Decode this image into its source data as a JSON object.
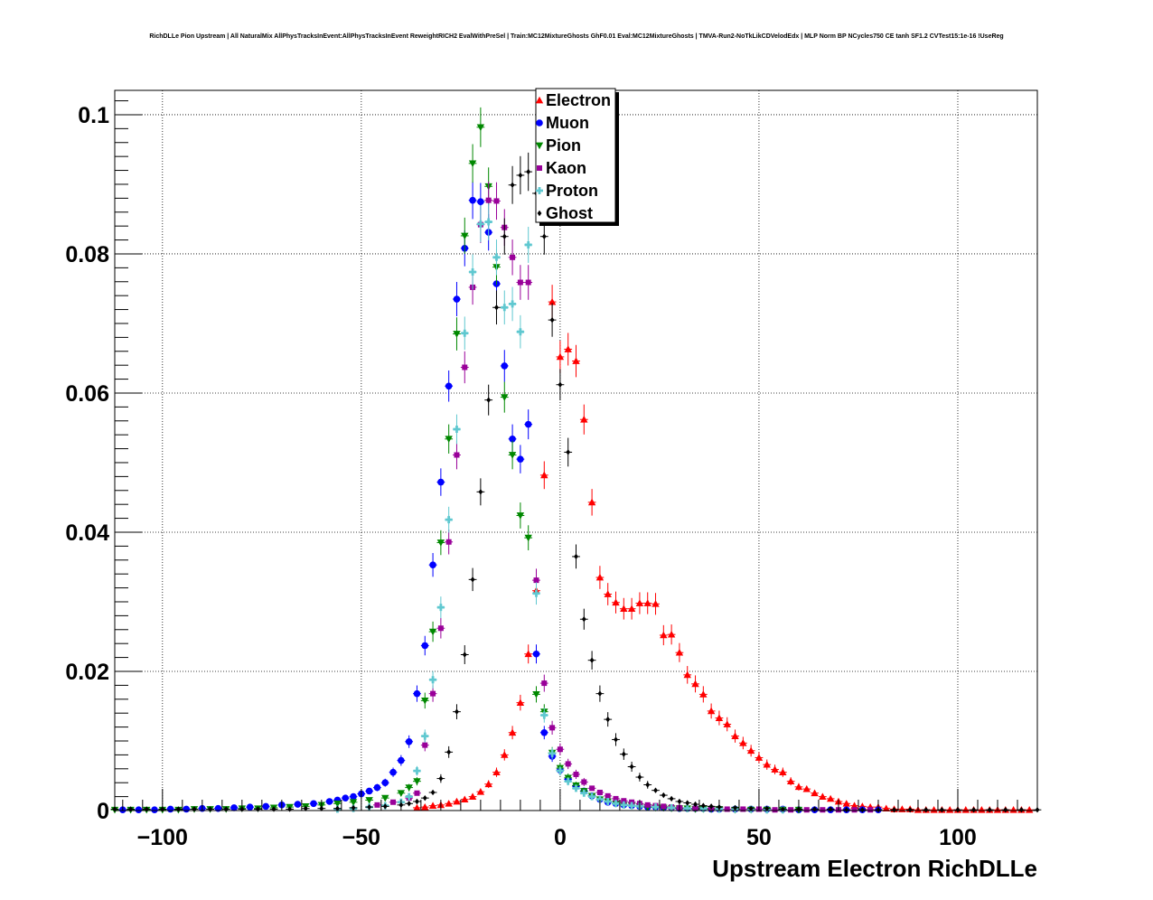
{
  "chart_data": {
    "type": "scatter",
    "title": "RichDLLe Pion Upstream | All NaturalMix AllPhysTracksInEvent:AllPhysTracksInEvent ReweightRICH2 EvalWithPreSel | Train:MC12MixtureGhosts GhF0.01 Eval:MC12MixtureGhosts | TMVA-Run2-NoTkLikCDVelodEdx | MLP Norm BP NCycles750 CE tanh SF1.2 CVTest15:1e-16 !UseReg",
    "xlabel": "Upstream Electron RichDLLe",
    "ylabel": "",
    "xlim": [
      -112,
      120
    ],
    "ylim": [
      0,
      0.1035
    ],
    "xticks": [
      -100,
      -50,
      0,
      50,
      100
    ],
    "xtick_labels": [
      "−100",
      "−50",
      "0",
      "50",
      "100"
    ],
    "yticks": [
      0,
      0.02,
      0.04,
      0.06,
      0.08,
      0.1
    ],
    "ytick_labels": [
      "0",
      "0.02",
      "0.04",
      "0.06",
      "0.08",
      "0.1"
    ],
    "grid": true,
    "legend_position": "top-center",
    "series": [
      {
        "name": "Electron",
        "color": "#ff0000",
        "marker": "triangle-up",
        "x": [
          -36,
          -34,
          -32,
          -30,
          -28,
          -26,
          -24,
          -22,
          -20,
          -18,
          -16,
          -14,
          -12,
          -10,
          -8,
          -6,
          -4,
          -2,
          0,
          2,
          4,
          6,
          8,
          10,
          12,
          14,
          16,
          18,
          20,
          22,
          24,
          26,
          28,
          30,
          32,
          34,
          36,
          38,
          40,
          42,
          44,
          46,
          48,
          50,
          52,
          54,
          56,
          58,
          60,
          62,
          64,
          66,
          68,
          70,
          72,
          74,
          76,
          78,
          80,
          82,
          84,
          86,
          88,
          90,
          92,
          94,
          96,
          98,
          100,
          102,
          104,
          106,
          108,
          110,
          112,
          114,
          116,
          118
        ],
        "y": [
          0.0004,
          0.0005,
          0.0007,
          0.0008,
          0.001,
          0.0013,
          0.0016,
          0.002,
          0.0027,
          0.0038,
          0.0055,
          0.008,
          0.0112,
          0.0155,
          0.0225,
          0.0316,
          0.0482,
          0.0731,
          0.0652,
          0.0663,
          0.0646,
          0.0562,
          0.0443,
          0.0335,
          0.0311,
          0.0299,
          0.029,
          0.029,
          0.0298,
          0.0298,
          0.0297,
          0.0252,
          0.0253,
          0.0227,
          0.0195,
          0.0182,
          0.0167,
          0.0143,
          0.0133,
          0.0124,
          0.0107,
          0.0097,
          0.0086,
          0.0076,
          0.0066,
          0.0059,
          0.0055,
          0.0042,
          0.0034,
          0.0031,
          0.0025,
          0.002,
          0.0017,
          0.0013,
          0.001,
          0.0007,
          0.0006,
          0.0005,
          0.0005,
          0.0003,
          0.0002,
          0.0002,
          0.0002,
          0.0001,
          0.0001,
          0.0001,
          0.0001,
          0.0001,
          0.0001,
          0.0001,
          0.0001,
          0.0001,
          0.0001,
          0.0001,
          0.0001,
          0.0001,
          0.0001,
          0.0001
        ]
      },
      {
        "name": "Muon",
        "color": "#0000ff",
        "marker": "circle",
        "x": [
          -110,
          -106,
          -102,
          -98,
          -94,
          -90,
          -86,
          -82,
          -78,
          -74,
          -70,
          -66,
          -62,
          -58,
          -56,
          -54,
          -52,
          -50,
          -48,
          -46,
          -44,
          -42,
          -40,
          -38,
          -36,
          -34,
          -32,
          -30,
          -28,
          -26,
          -24,
          -22,
          -20,
          -18,
          -16,
          -14,
          -12,
          -10,
          -8,
          -6,
          -4,
          -2,
          0,
          2,
          4,
          6,
          8,
          10,
          12,
          14,
          16,
          18,
          20,
          22,
          24,
          26,
          28,
          30,
          32,
          34,
          36,
          38,
          40,
          44,
          48,
          52,
          56,
          60,
          64,
          68,
          72,
          76,
          80
        ],
        "y": [
          0.0001,
          0.0001,
          0.0001,
          0.0002,
          0.0002,
          0.0003,
          0.0003,
          0.0004,
          0.0005,
          0.0006,
          0.0008,
          0.0009,
          0.001,
          0.0013,
          0.0015,
          0.0018,
          0.002,
          0.0024,
          0.0028,
          0.0033,
          0.004,
          0.0055,
          0.0072,
          0.0099,
          0.0168,
          0.0237,
          0.0353,
          0.0472,
          0.061,
          0.0735,
          0.0808,
          0.0877,
          0.0875,
          0.0831,
          0.0757,
          0.0639,
          0.0534,
          0.0505,
          0.0555,
          0.0225,
          0.0112,
          0.0078,
          0.0058,
          0.0045,
          0.0035,
          0.0028,
          0.0021,
          0.0016,
          0.0012,
          0.001,
          0.0008,
          0.0007,
          0.0006,
          0.0005,
          0.0005,
          0.0004,
          0.0004,
          0.0003,
          0.0003,
          0.0003,
          0.0003,
          0.0002,
          0.0002,
          0.0002,
          0.0002,
          0.0002,
          0.0002,
          0.0001,
          0.0001,
          0.0001,
          0.0001,
          0.0001,
          0.0001
        ]
      },
      {
        "name": "Pion",
        "color": "#008800",
        "marker": "triangle-down",
        "x": [
          -112,
          -108,
          -104,
          -100,
          -96,
          -92,
          -88,
          -84,
          -80,
          -76,
          -72,
          -68,
          -64,
          -60,
          -56,
          -52,
          -48,
          -44,
          -40,
          -38,
          -36,
          -34,
          -32,
          -30,
          -28,
          -26,
          -24,
          -22,
          -20,
          -18,
          -16,
          -14,
          -12,
          -10,
          -8,
          -6,
          -4,
          -2,
          0,
          2,
          4,
          6,
          8,
          10,
          12,
          14,
          16,
          18,
          20,
          22,
          24,
          26,
          28,
          30,
          32,
          34,
          36,
          38,
          40,
          44,
          48,
          52,
          56,
          60
        ],
        "y": [
          0.0001,
          0.0001,
          0.0001,
          0.0001,
          0.0001,
          0.0002,
          0.0002,
          0.0002,
          0.0003,
          0.0003,
          0.0004,
          0.0005,
          0.0006,
          0.0008,
          0.001,
          0.0012,
          0.0015,
          0.0018,
          0.0025,
          0.0033,
          0.0042,
          0.0158,
          0.0257,
          0.0385,
          0.0534,
          0.0685,
          0.0826,
          0.093,
          0.0982,
          0.0897,
          0.0781,
          0.0594,
          0.0511,
          0.0424,
          0.0392,
          0.0167,
          0.0142,
          0.0083,
          0.0061,
          0.0047,
          0.0036,
          0.0028,
          0.0021,
          0.0016,
          0.0013,
          0.001,
          0.0008,
          0.0007,
          0.0006,
          0.0005,
          0.0004,
          0.0004,
          0.0003,
          0.0003,
          0.0003,
          0.0002,
          0.0002,
          0.0002,
          0.0002,
          0.0001,
          0.0001,
          0.0001,
          0.0001,
          0.0001
        ]
      },
      {
        "name": "Kaon",
        "color": "#990099",
        "marker": "square",
        "x": [
          -46,
          -42,
          -38,
          -36,
          -34,
          -32,
          -30,
          -28,
          -26,
          -24,
          -22,
          -20,
          -18,
          -16,
          -14,
          -12,
          -10,
          -8,
          -6,
          -4,
          -2,
          0,
          2,
          4,
          6,
          8,
          10,
          12,
          14,
          16,
          18,
          20,
          22,
          24,
          26,
          28,
          30,
          34,
          38,
          42,
          46,
          50,
          54,
          58,
          62,
          66,
          70,
          74,
          78
        ],
        "y": [
          0.0008,
          0.0012,
          0.0018,
          0.0025,
          0.0094,
          0.0168,
          0.0262,
          0.0386,
          0.0511,
          0.0637,
          0.0752,
          0.0842,
          0.0877,
          0.0876,
          0.0838,
          0.0795,
          0.0759,
          0.0759,
          0.0331,
          0.0183,
          0.0119,
          0.0088,
          0.0067,
          0.0052,
          0.0041,
          0.0032,
          0.0026,
          0.0021,
          0.0017,
          0.0014,
          0.0012,
          0.001,
          0.0008,
          0.0007,
          0.0006,
          0.0005,
          0.0004,
          0.0003,
          0.0003,
          0.0002,
          0.0002,
          0.0002,
          0.0001,
          0.0001,
          0.0001,
          0.0001,
          0.0001,
          0.0001,
          0.0001
        ]
      },
      {
        "name": "Proton",
        "color": "#5fc8d0",
        "marker": "cross",
        "x": [
          -56,
          -52,
          -48,
          -44,
          -40,
          -38,
          -36,
          -34,
          -32,
          -30,
          -28,
          -26,
          -24,
          -22,
          -20,
          -18,
          -16,
          -14,
          -12,
          -10,
          -8,
          -6,
          -4,
          -2,
          0,
          2,
          4,
          6,
          8,
          10,
          12,
          14,
          16,
          18,
          20,
          24,
          28,
          32,
          36,
          40,
          44,
          48,
          52,
          56
        ],
        "y": [
          0.0002,
          0.0003,
          0.0005,
          0.0007,
          0.0012,
          0.002,
          0.0057,
          0.0107,
          0.0188,
          0.0292,
          0.0418,
          0.0548,
          0.0686,
          0.0774,
          0.0843,
          0.0846,
          0.0795,
          0.0723,
          0.0728,
          0.0688,
          0.0813,
          0.0312,
          0.0137,
          0.0082,
          0.0057,
          0.0042,
          0.0032,
          0.0025,
          0.002,
          0.0016,
          0.0013,
          0.001,
          0.0008,
          0.0007,
          0.0006,
          0.0005,
          0.0004,
          0.0003,
          0.0003,
          0.0002,
          0.0002,
          0.0002,
          0.0001,
          0.0001
        ]
      },
      {
        "name": "Ghost",
        "color": "#000000",
        "marker": "diamond",
        "x": [
          -112,
          -108,
          -104,
          -100,
          -96,
          -92,
          -88,
          -84,
          -80,
          -76,
          -72,
          -68,
          -64,
          -60,
          -56,
          -52,
          -48,
          -44,
          -40,
          -38,
          -36,
          -34,
          -32,
          -30,
          -28,
          -26,
          -24,
          -22,
          -20,
          -18,
          -16,
          -14,
          -12,
          -10,
          -8,
          -6,
          -4,
          -2,
          0,
          2,
          4,
          6,
          8,
          10,
          12,
          14,
          16,
          18,
          20,
          22,
          24,
          26,
          28,
          30,
          32,
          34,
          36,
          38,
          40,
          44,
          48,
          52,
          56,
          60,
          64,
          68,
          72,
          76,
          80,
          84,
          88,
          92,
          96,
          100,
          104,
          108,
          112,
          116,
          120
        ],
        "y": [
          0.0002,
          0.0002,
          0.0002,
          0.0002,
          0.0002,
          0.0002,
          0.0002,
          0.0002,
          0.0002,
          0.0002,
          0.0002,
          0.0002,
          0.0003,
          0.0003,
          0.0003,
          0.0004,
          0.0005,
          0.0006,
          0.0008,
          0.001,
          0.0013,
          0.0018,
          0.0026,
          0.0046,
          0.0084,
          0.0142,
          0.0224,
          0.0332,
          0.0458,
          0.059,
          0.0723,
          0.0825,
          0.0899,
          0.0913,
          0.0918,
          0.0887,
          0.0825,
          0.0705,
          0.0612,
          0.0515,
          0.0365,
          0.0275,
          0.0216,
          0.0168,
          0.0131,
          0.0102,
          0.0081,
          0.0063,
          0.0048,
          0.0037,
          0.0029,
          0.0022,
          0.0017,
          0.0013,
          0.0011,
          0.0009,
          0.0007,
          0.0006,
          0.0005,
          0.0004,
          0.0003,
          0.0003,
          0.0002,
          0.0002,
          0.0002,
          0.0002,
          0.0001,
          0.0001,
          0.0001,
          0.0001,
          0.0001,
          0.0001,
          0.0001,
          0.0001,
          0.0001,
          0.0001,
          0.0001,
          0.0001,
          0.0001
        ]
      }
    ]
  }
}
